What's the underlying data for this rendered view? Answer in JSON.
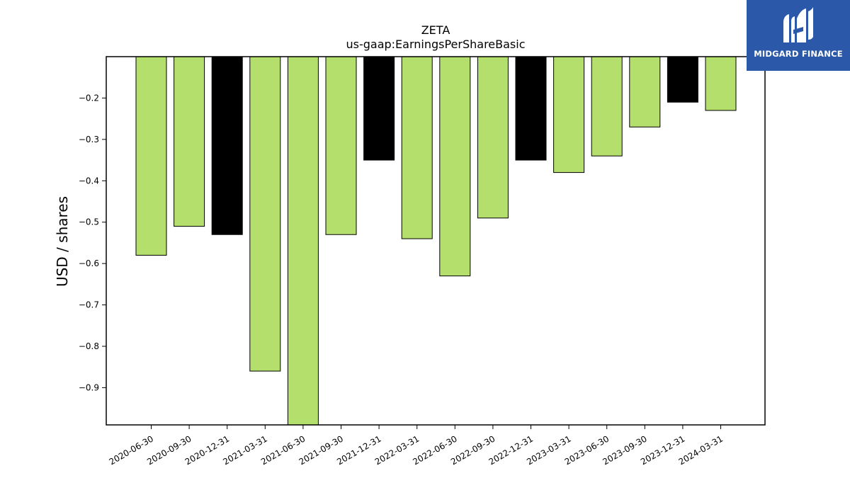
{
  "chart_data": {
    "type": "bar",
    "title": "ZETA",
    "subtitle": "us-gaap:EarningsPerShareBasic",
    "xlabel": "",
    "ylabel": "USD / shares",
    "categories": [
      "2020-06-30",
      "2020-09-30",
      "2020-12-31",
      "2021-03-31",
      "2021-06-30",
      "2021-09-30",
      "2021-12-31",
      "2022-03-31",
      "2022-06-30",
      "2022-09-30",
      "2022-12-31",
      "2023-03-31",
      "2023-06-30",
      "2023-09-30",
      "2023-12-31",
      "2024-03-31"
    ],
    "values": [
      -0.58,
      -0.51,
      -0.53,
      -0.86,
      -0.99,
      -0.53,
      -0.35,
      -0.54,
      -0.63,
      -0.49,
      -0.35,
      -0.38,
      -0.34,
      -0.27,
      -0.21,
      -0.23
    ],
    "bar_colors": [
      "#b5df6c",
      "#b5df6c",
      "#000000",
      "#b5df6c",
      "#b5df6c",
      "#b5df6c",
      "#000000",
      "#b5df6c",
      "#b5df6c",
      "#b5df6c",
      "#000000",
      "#b5df6c",
      "#b5df6c",
      "#b5df6c",
      "#000000",
      "#b5df6c"
    ],
    "yticks": [
      -0.2,
      -0.3,
      -0.4,
      -0.5,
      -0.6,
      -0.7,
      -0.8,
      -0.9
    ],
    "ytick_labels": [
      "−0.2",
      "−0.3",
      "−0.4",
      "−0.5",
      "−0.6",
      "−0.7",
      "−0.8",
      "−0.9"
    ],
    "ylim": [
      -0.99,
      -0.1
    ],
    "grid": false,
    "legend": "none"
  },
  "logo": {
    "text": "MIDGARD FINANCE",
    "icon": "midgard-finance-logo-icon",
    "background": "#2b58a8"
  }
}
